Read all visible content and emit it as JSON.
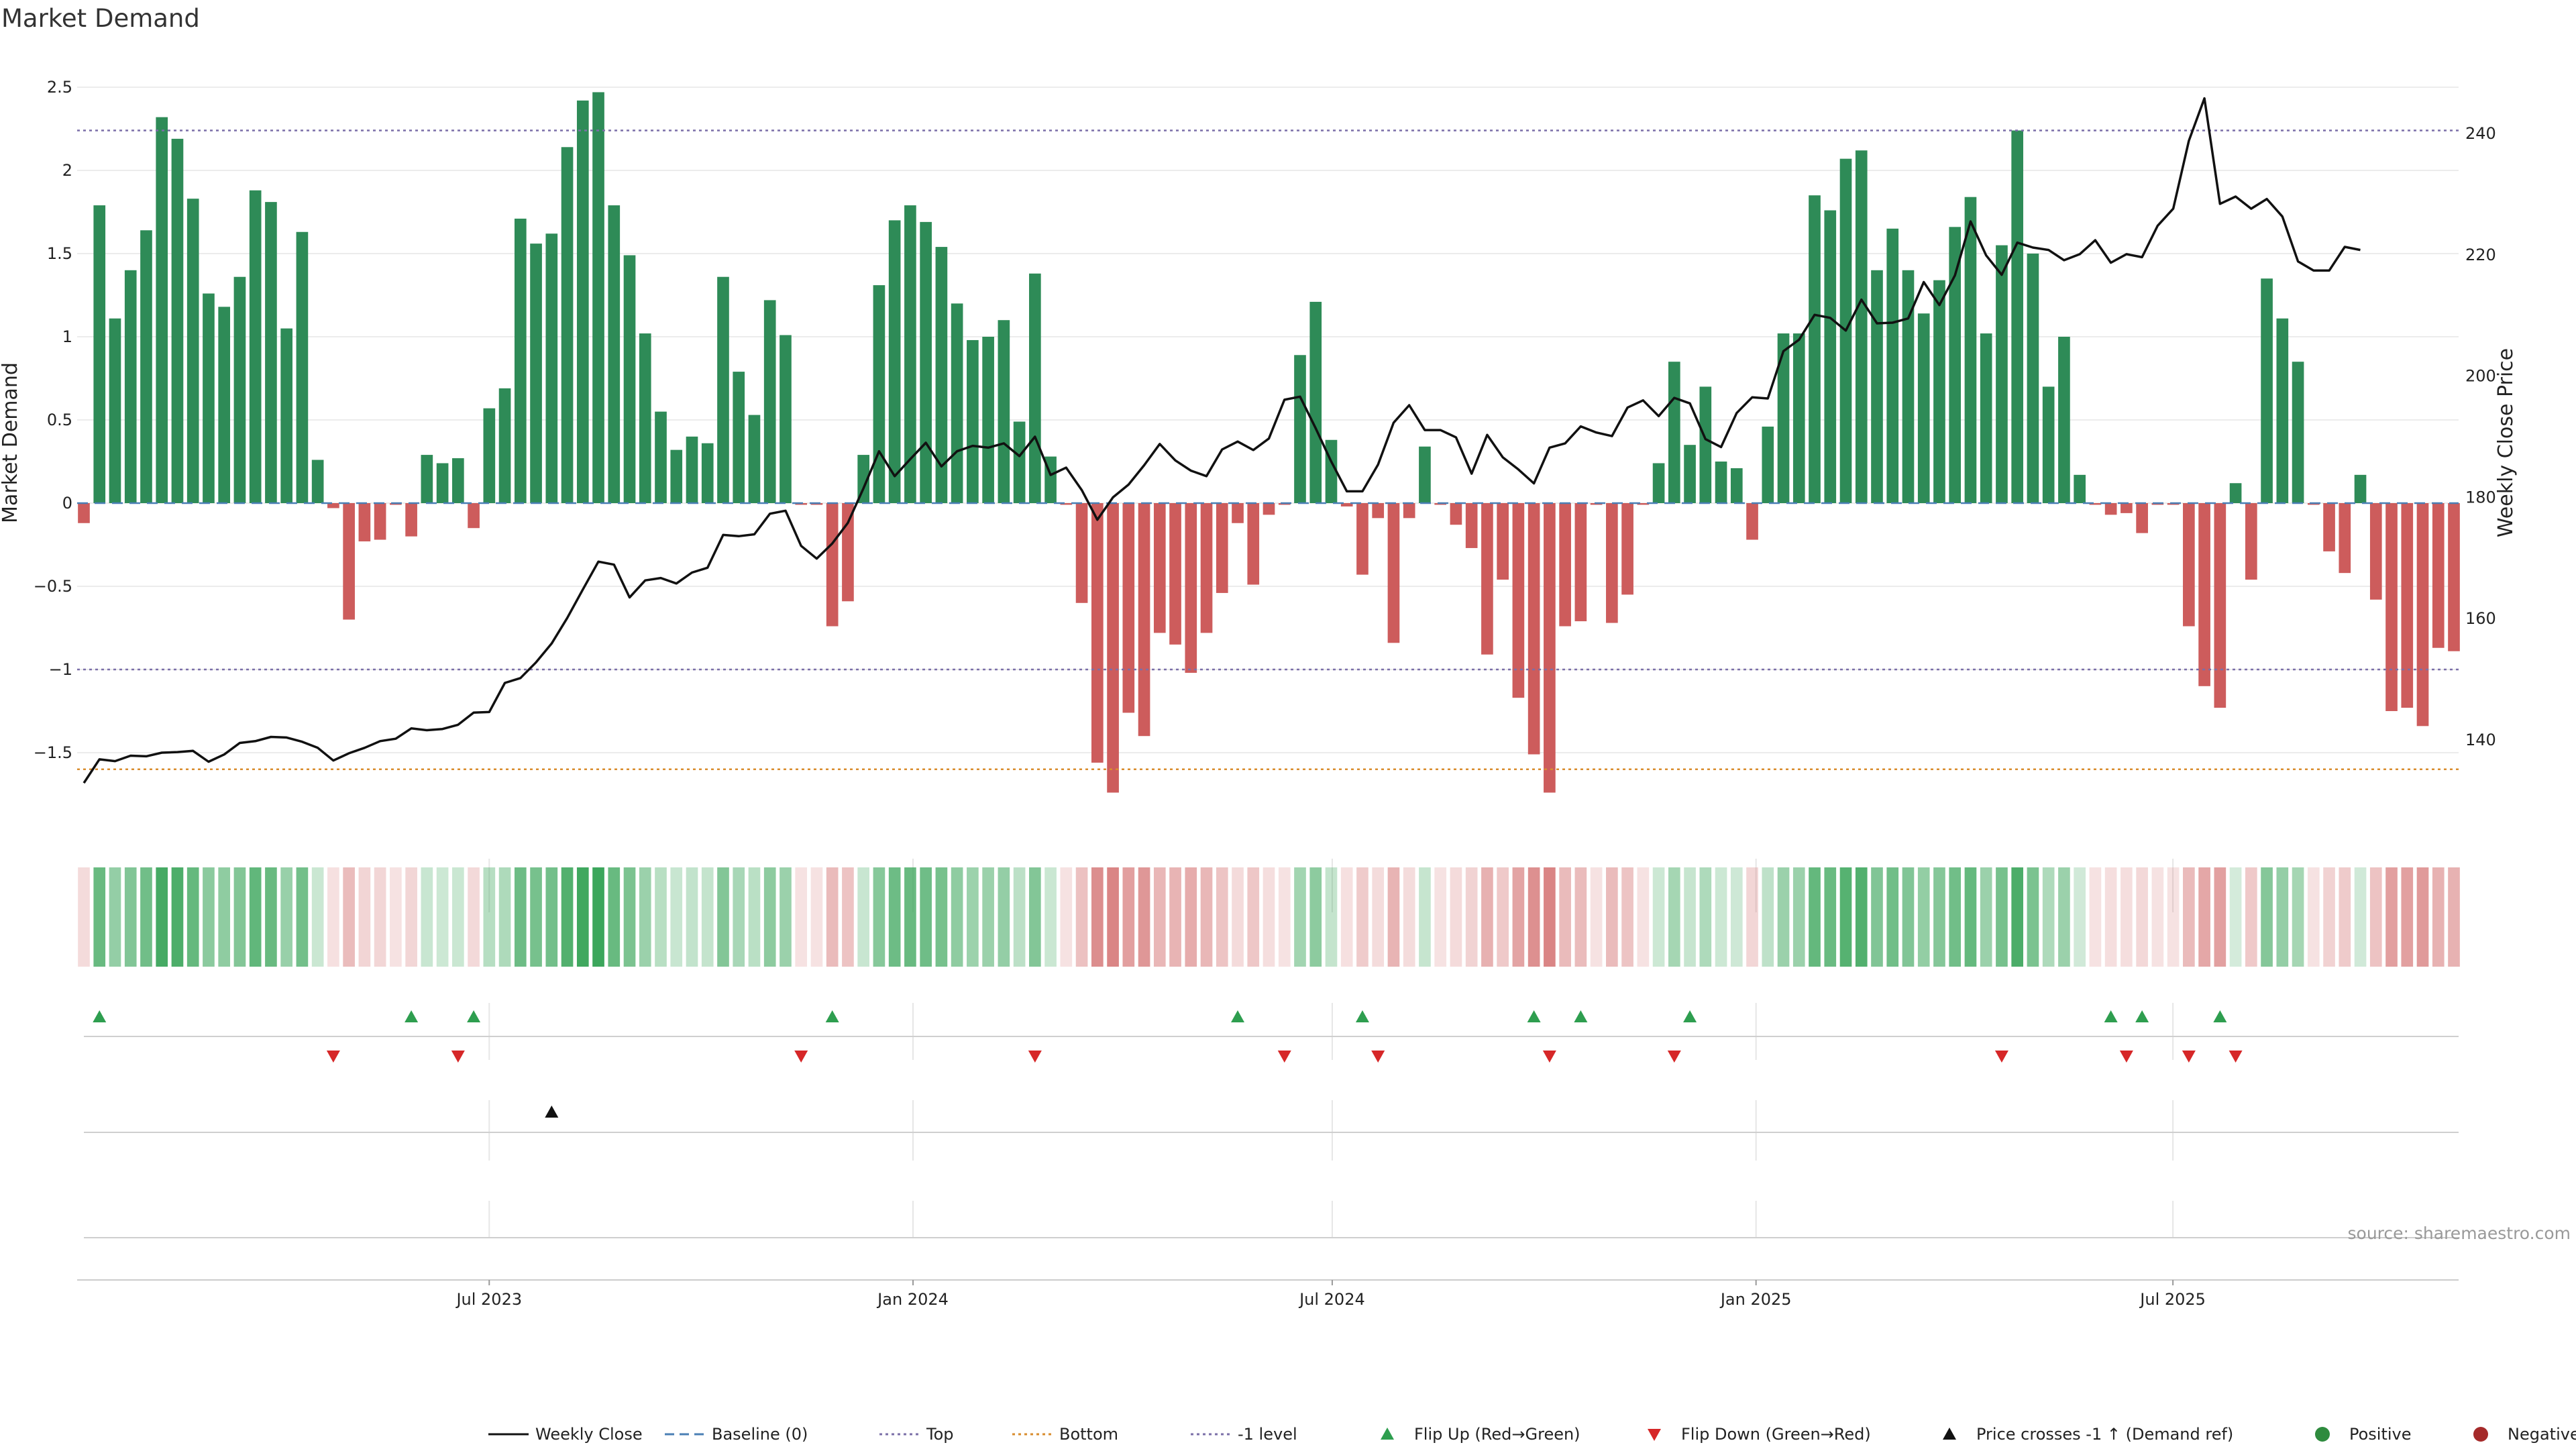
{
  "chart_data": {
    "type": "bar",
    "title": "Market Demand",
    "ylabel": "Market Demand",
    "y2label": "Weekly Close Price",
    "ylim": [
      -1.75,
      2.55
    ],
    "y2lim": [
      131.9,
      249.8
    ],
    "yticks": [
      -1.5,
      -1,
      -0.5,
      0,
      0.5,
      1,
      1.5,
      2,
      2.5
    ],
    "y2ticks": [
      140,
      160,
      180,
      200,
      220,
      240
    ],
    "reference_lines": {
      "top": 2.24,
      "bottom": -1.6,
      "minus_one": -1,
      "baseline": 0
    },
    "x_start": "2023-01-06",
    "x_end": "2025-10-31",
    "x_ticks": [
      {
        "date": "2023-07-01",
        "label": "Jul 2023"
      },
      {
        "date": "2024-01-01",
        "label": "Jan 2024"
      },
      {
        "date": "2024-07-01",
        "label": "Jul 2024"
      },
      {
        "date": "2025-01-01",
        "label": "Jan 2025"
      },
      {
        "date": "2025-07-01",
        "label": "Jul 2025"
      }
    ],
    "series": [
      {
        "name": "Market Demand",
        "values": [
          -0.12,
          1.79,
          1.11,
          1.4,
          1.64,
          2.32,
          2.19,
          1.83,
          1.26,
          1.18,
          1.36,
          1.88,
          1.81,
          1.05,
          1.63,
          0.26,
          -0.03,
          -0.7,
          -0.23,
          -0.22,
          -0.01,
          -0.2,
          0.29,
          0.24,
          0.27,
          -0.15,
          0.57,
          0.69,
          1.71,
          1.56,
          1.62,
          2.14,
          2.42,
          2.47,
          1.79,
          1.49,
          1.02,
          0.55,
          0.32,
          0.4,
          0.36,
          1.36,
          0.79,
          0.53,
          1.22,
          1.01,
          -0.01,
          -0.01,
          -0.74,
          -0.59,
          0.29,
          1.31,
          1.7,
          1.79,
          1.69,
          1.54,
          1.2,
          0.98,
          1.0,
          1.1,
          0.49,
          1.38,
          0.28,
          -0.01,
          -0.6,
          -1.56,
          -1.74,
          -1.26,
          -1.4,
          -0.78,
          -0.85,
          -1.02,
          -0.78,
          -0.54,
          -0.12,
          -0.49,
          -0.07,
          -0.01,
          0.89,
          1.21,
          0.38,
          -0.02,
          -0.43,
          -0.09,
          -0.84,
          -0.09,
          0.34,
          -0.01,
          -0.13,
          -0.27,
          -0.91,
          -0.46,
          -1.17,
          -1.51,
          -1.74,
          -0.74,
          -0.71,
          -0.01,
          -0.72,
          -0.55,
          -0.01,
          0.24,
          0.85,
          0.35,
          0.7,
          0.25,
          0.21,
          -0.22,
          0.46,
          1.02,
          1.02,
          1.85,
          1.76,
          2.07,
          2.12,
          1.4,
          1.65,
          1.4,
          1.14,
          1.34,
          1.66,
          1.84,
          1.02,
          1.55,
          2.24,
          1.5,
          0.7,
          1.0,
          0.17,
          -0.01,
          -0.07,
          -0.06,
          -0.18,
          -0.01,
          -0.01,
          -0.74,
          -1.1,
          -1.23,
          0.12,
          -0.46,
          1.35,
          1.11,
          0.85,
          -0.01,
          -0.29,
          -0.42,
          0.17,
          -0.58,
          -1.25,
          -1.23,
          -1.34,
          -0.87,
          -0.89
        ]
      },
      {
        "name": "Weekly Close",
        "values": [
          132.9,
          136.8,
          136.5,
          137.4,
          137.3,
          137.9,
          138.0,
          138.2,
          136.4,
          137.6,
          139.5,
          139.8,
          140.5,
          140.4,
          139.7,
          138.7,
          136.6,
          137.8,
          138.7,
          139.8,
          140.2,
          141.9,
          141.6,
          141.8,
          142.5,
          144.5,
          144.6,
          149.4,
          150.2,
          152.8,
          155.9,
          160.1,
          164.8,
          169.4,
          168.9,
          163.5,
          166.3,
          166.7,
          165.8,
          167.6,
          168.4,
          173.8,
          173.6,
          173.9,
          177.3,
          177.8,
          172.0,
          169.9,
          172.4,
          175.8,
          181.5,
          187.6,
          183.5,
          186.3,
          189.0,
          185.1,
          187.6,
          188.5,
          188.2,
          188.9,
          186.8,
          190.0,
          183.7,
          184.9,
          181.2,
          176.3,
          180.0,
          182.1,
          185.3,
          188.8,
          186.1,
          184.4,
          183.5,
          187.9,
          189.2,
          187.8,
          189.7,
          196.1,
          196.6,
          191.4,
          185.9,
          181.0,
          181.0,
          185.4,
          192.3,
          195.2,
          191.1,
          191.1,
          189.9,
          183.9,
          190.3,
          186.6,
          184.6,
          182.3,
          188.2,
          188.9,
          191.7,
          190.7,
          190.1,
          194.8,
          196.0,
          193.4,
          196.4,
          195.5,
          189.6,
          188.3,
          193.9,
          196.5,
          196.3,
          204.1,
          206.0,
          210.1,
          209.6,
          207.5,
          212.6,
          208.7,
          208.8,
          209.5,
          215.5,
          211.7,
          216.6,
          225.5,
          219.9,
          216.7,
          222.0,
          221.2,
          220.8,
          219.1,
          220.1,
          222.4,
          218.7,
          220.1,
          219.6,
          224.8,
          227.6,
          238.8,
          245.8,
          228.4,
          229.6,
          227.6,
          229.2,
          226.3,
          218.9,
          217.4,
          217.4,
          221.3,
          220.8
        ]
      }
    ],
    "strip": [
      {
        "name": "Flip Up (Red→Green)",
        "indices": [
          1,
          21,
          25,
          48,
          74,
          82,
          93,
          96,
          103,
          130,
          132,
          137
        ]
      },
      {
        "name": "Flip Down (Green→Red)",
        "indices": [
          16,
          24,
          46,
          61,
          77,
          83,
          94,
          102,
          123,
          131,
          135,
          138
        ]
      },
      {
        "name": "Price crosses -1 ↑ (Demand ref)",
        "indices": [
          30
        ]
      }
    ],
    "legend": {
      "position": "bottom-center",
      "items": [
        {
          "label": "Weekly Close",
          "style": "line"
        },
        {
          "label": "Baseline (0)",
          "style": "dash"
        },
        {
          "label": "Top",
          "style": "dot-purple"
        },
        {
          "label": "Bottom",
          "style": "dot-orange"
        },
        {
          "label": "-1 level",
          "style": "dot-purple"
        },
        {
          "label": "Flip Up (Red→Green)",
          "style": "tri-up-green"
        },
        {
          "label": "Flip Down (Green→Red)",
          "style": "tri-down-red"
        },
        {
          "label": "Price crosses -1 ↑ (Demand ref)",
          "style": "tri-up-black"
        },
        {
          "label": "Positive",
          "style": "dot-green"
        },
        {
          "label": "Negative",
          "style": "dot-red"
        }
      ]
    },
    "colors": {
      "positive": "#2e8b57",
      "negative": "#cd5c5c",
      "close_line": "#111111",
      "top_line": "#7b6fa8",
      "bottom_line": "#d98c2e",
      "baseline": "#4a7fb5",
      "flip_up": "#2e9e4f",
      "flip_down": "#d62728",
      "cross": "#111111"
    },
    "source": "source: sharemaestro.com"
  }
}
